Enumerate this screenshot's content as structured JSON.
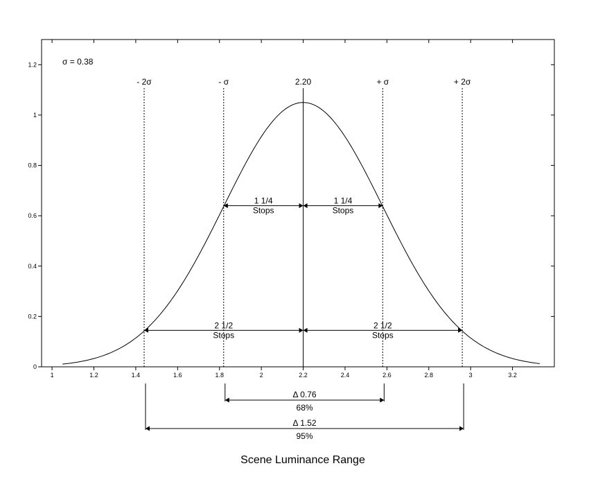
{
  "chart_data": {
    "type": "line",
    "title": "",
    "xlabel": "Scene Luminance Range",
    "ylabel": "",
    "xlim": [
      0.95,
      3.4
    ],
    "ylim": [
      0,
      1.3
    ],
    "x_ticks": [
      "1",
      "1.2",
      "1.4",
      "1.6",
      "1.8",
      "2",
      "2.2",
      "2.4",
      "2.6",
      "2.8",
      "3",
      "3.2"
    ],
    "y_ticks": [
      "0",
      "0.2",
      "0.4",
      "0.6",
      "0.8",
      "1",
      "1.2"
    ],
    "grid": false,
    "curve": {
      "kind": "normal",
      "mean": 2.2,
      "sigma": 0.38,
      "peak": 1.05,
      "x_start": 1.05,
      "x_end": 3.33
    },
    "sigma_label": "σ = 0.38",
    "reference_lines": [
      {
        "x": 1.44,
        "label": "- 2σ",
        "style": "dotted"
      },
      {
        "x": 1.82,
        "label": "- σ",
        "style": "dotted"
      },
      {
        "x": 2.2,
        "label": "2.20",
        "style": "solid"
      },
      {
        "x": 2.58,
        "label": "+ σ",
        "style": "dotted"
      },
      {
        "x": 2.96,
        "label": "+ 2σ",
        "style": "dotted"
      }
    ],
    "inner_arrows": [
      {
        "x1": 1.82,
        "x2": 2.2,
        "y": 0.64,
        "line1": "1 1/4",
        "line2": "Stops"
      },
      {
        "x1": 2.2,
        "x2": 2.58,
        "y": 0.64,
        "line1": "1 1/4",
        "line2": "Stops"
      },
      {
        "x1": 1.44,
        "x2": 2.2,
        "y": 0.145,
        "line1": "2 1/2",
        "line2": "Stops"
      },
      {
        "x1": 2.2,
        "x2": 2.96,
        "y": 0.145,
        "line1": "2 1/2",
        "line2": "Stops"
      }
    ],
    "range_annotations": [
      {
        "x1": 1.82,
        "x2": 2.58,
        "line1": "Δ 0.76",
        "line2": "68%"
      },
      {
        "x1": 1.44,
        "x2": 2.96,
        "line1": "Δ 1.52",
        "line2": "95%"
      }
    ]
  }
}
